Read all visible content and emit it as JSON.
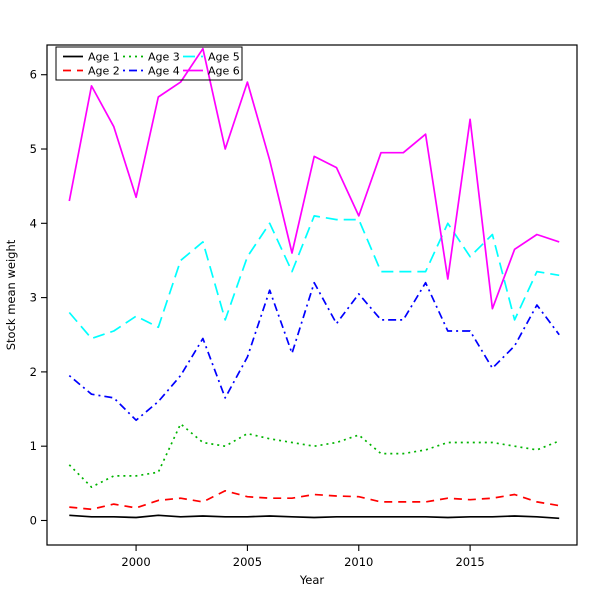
{
  "chart_data": {
    "type": "line",
    "title": "",
    "xlabel": "Year",
    "ylabel": "Stock mean weight",
    "x": [
      1997,
      1998,
      1999,
      2000,
      2001,
      2002,
      2003,
      2004,
      2005,
      2006,
      2007,
      2008,
      2009,
      2010,
      2011,
      2012,
      2013,
      2014,
      2015,
      2016,
      2017,
      2018,
      2019
    ],
    "xlim": [
      1996.0,
      2019.8
    ],
    "ylim": [
      -0.33,
      6.4
    ],
    "xticks": [
      2000,
      2005,
      2010,
      2015
    ],
    "yticks": [
      0,
      1,
      2,
      3,
      4,
      5,
      6
    ],
    "grid": false,
    "legend_position": "top-left",
    "legend_columns": 3,
    "series": [
      {
        "name": "Age 1",
        "color": "#000000",
        "linetype": "solid",
        "values": [
          0.07,
          0.05,
          0.05,
          0.04,
          0.07,
          0.05,
          0.06,
          0.05,
          0.05,
          0.06,
          0.05,
          0.04,
          0.05,
          0.05,
          0.05,
          0.05,
          0.05,
          0.04,
          0.05,
          0.05,
          0.06,
          0.05,
          0.03
        ]
      },
      {
        "name": "Age 2",
        "color": "#ff0000",
        "linetype": "dashed",
        "values": [
          0.18,
          0.15,
          0.22,
          0.17,
          0.27,
          0.3,
          0.25,
          0.4,
          0.32,
          0.3,
          0.3,
          0.35,
          0.33,
          0.32,
          0.25,
          0.25,
          0.25,
          0.3,
          0.28,
          0.3,
          0.35,
          0.25,
          0.2
        ]
      },
      {
        "name": "Age 3",
        "color": "#00b400",
        "linetype": "dotted",
        "values": [
          0.75,
          0.45,
          0.6,
          0.6,
          0.65,
          1.3,
          1.05,
          1.0,
          1.17,
          1.1,
          1.05,
          1.0,
          1.05,
          1.15,
          0.9,
          0.9,
          0.95,
          1.05,
          1.05,
          1.05,
          1.0,
          0.95,
          1.07
        ]
      },
      {
        "name": "Age 4",
        "color": "#0000ff",
        "linetype": "dotdash",
        "values": [
          1.95,
          1.7,
          1.65,
          1.35,
          1.6,
          1.95,
          2.45,
          1.65,
          2.2,
          3.1,
          2.25,
          3.2,
          2.65,
          3.05,
          2.7,
          2.7,
          3.2,
          2.55,
          2.55,
          2.05,
          2.35,
          2.9,
          2.5
        ]
      },
      {
        "name": "Age 5",
        "color": "#00ffff",
        "linetype": "longdash",
        "values": [
          2.8,
          2.45,
          2.55,
          2.75,
          2.6,
          3.5,
          3.75,
          2.7,
          3.55,
          4.0,
          3.35,
          4.1,
          4.05,
          4.05,
          3.35,
          3.35,
          3.35,
          4.0,
          3.55,
          3.85,
          2.7,
          3.35,
          3.3
        ]
      },
      {
        "name": "Age 6",
        "color": "#ff00ff",
        "linetype": "solid",
        "values": [
          4.3,
          5.85,
          5.3,
          4.35,
          5.7,
          5.9,
          6.35,
          5.0,
          5.9,
          4.85,
          3.6,
          4.9,
          4.75,
          4.1,
          4.95,
          4.95,
          5.2,
          3.25,
          5.4,
          2.85,
          3.65,
          3.85,
          3.75
        ]
      }
    ]
  }
}
